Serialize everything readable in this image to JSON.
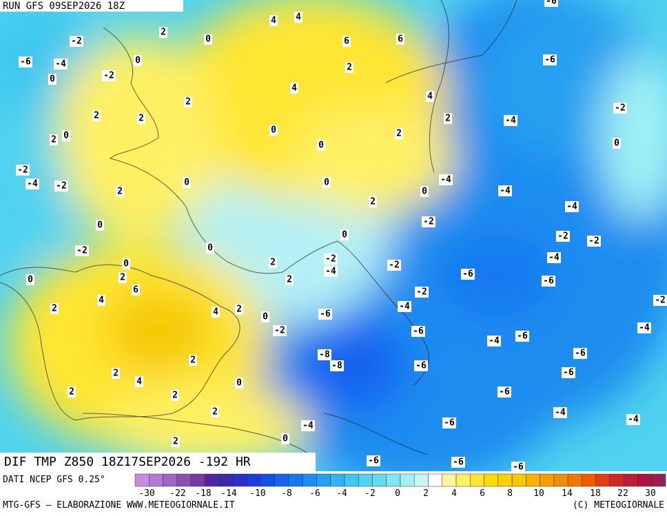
{
  "header": {
    "run": "RUN GFS 09SEP2026 18Z"
  },
  "map": {
    "labels": [
      -6,
      4,
      4,
      2,
      0,
      -2,
      6,
      6,
      -6,
      -4,
      0,
      -6,
      -2,
      0,
      2,
      4,
      2,
      4,
      -2,
      2,
      2,
      2,
      -4,
      2,
      0,
      0,
      2,
      0,
      0,
      -2,
      -4,
      -2,
      0,
      0,
      -4,
      0,
      -4,
      2,
      2,
      -4,
      0,
      -2,
      0,
      -2,
      -2,
      -2,
      0,
      -2,
      -4,
      2,
      -2,
      0,
      -4,
      -6,
      -6,
      0,
      2,
      2,
      6,
      -2,
      4,
      -2,
      -4,
      2,
      4,
      2,
      -6,
      0,
      -4,
      -2,
      -6,
      -4,
      -6,
      -8,
      -8,
      -6,
      -6,
      2,
      -6,
      2,
      4,
      0,
      2,
      2,
      -6,
      -4,
      2,
      -4,
      -4,
      -6,
      2,
      0,
      -6,
      -6,
      -6
    ]
  },
  "footer": {
    "title": "DIF TMP Z850 18Z17SEP2026 -192 HR",
    "source": "DATI NCEP GFS 0.25°",
    "credit": "MTG-GFS — ELABORAZIONE WWW.METEOGIORNALE.IT",
    "copyright": "(C) METEOGIORNALE"
  },
  "colorbar": {
    "ticks": [
      -30,
      -22,
      -18,
      -14,
      -10,
      -8,
      -6,
      -4,
      -2,
      0,
      2,
      4,
      6,
      8,
      10,
      14,
      18,
      22,
      30
    ],
    "colors": [
      "#c88cdc",
      "#b478d2",
      "#a064c8",
      "#8c50b4",
      "#783ca0",
      "#50289b",
      "#3c28aa",
      "#2832c8",
      "#1e3cdc",
      "#1450e6",
      "#1464f0",
      "#1478f0",
      "#1e8cf0",
      "#28a0f0",
      "#32b4f0",
      "#3cc8f0",
      "#50d2f0",
      "#64dcf0",
      "#82e6f0",
      "#a0f0f5",
      "#c8f5f5",
      "#ffffff",
      "#fff5a0",
      "#fff064",
      "#ffe632",
      "#ffdc00",
      "#fad200",
      "#f5c800",
      "#f5b400",
      "#f5a000",
      "#f08c00",
      "#f07800",
      "#f05a00",
      "#e63c14",
      "#d2281e",
      "#be1e32",
      "#aa1446",
      "#961e5a"
    ]
  }
}
